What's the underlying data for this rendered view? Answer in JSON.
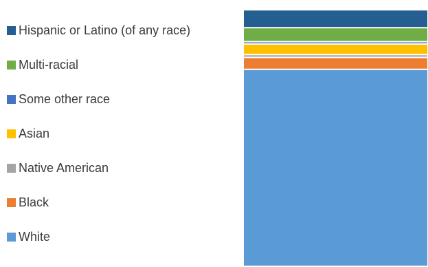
{
  "chart_data": {
    "type": "bar",
    "stacked": true,
    "categories": [
      ""
    ],
    "ylim": [
      0,
      100
    ],
    "grid": false,
    "legend_position": "left",
    "series": [
      {
        "name": "White",
        "values": [
          75.6
        ],
        "color": "#5b9bd5"
      },
      {
        "name": "Black",
        "values": [
          4.6
        ],
        "color": "#ed7d31"
      },
      {
        "name": "Native American",
        "values": [
          1.1
        ],
        "color": "#a5a5a5"
      },
      {
        "name": "Asian",
        "values": [
          4.1
        ],
        "color": "#ffc000"
      },
      {
        "name": "Some other race",
        "values": [
          0.9
        ],
        "color": "#4472c4"
      },
      {
        "name": "Multi-racial",
        "values": [
          5.4
        ],
        "color": "#70ad47"
      },
      {
        "name": "Hispanic or Latino (of any race)",
        "values": [
          6.9
        ],
        "color": "#255e91"
      }
    ]
  }
}
